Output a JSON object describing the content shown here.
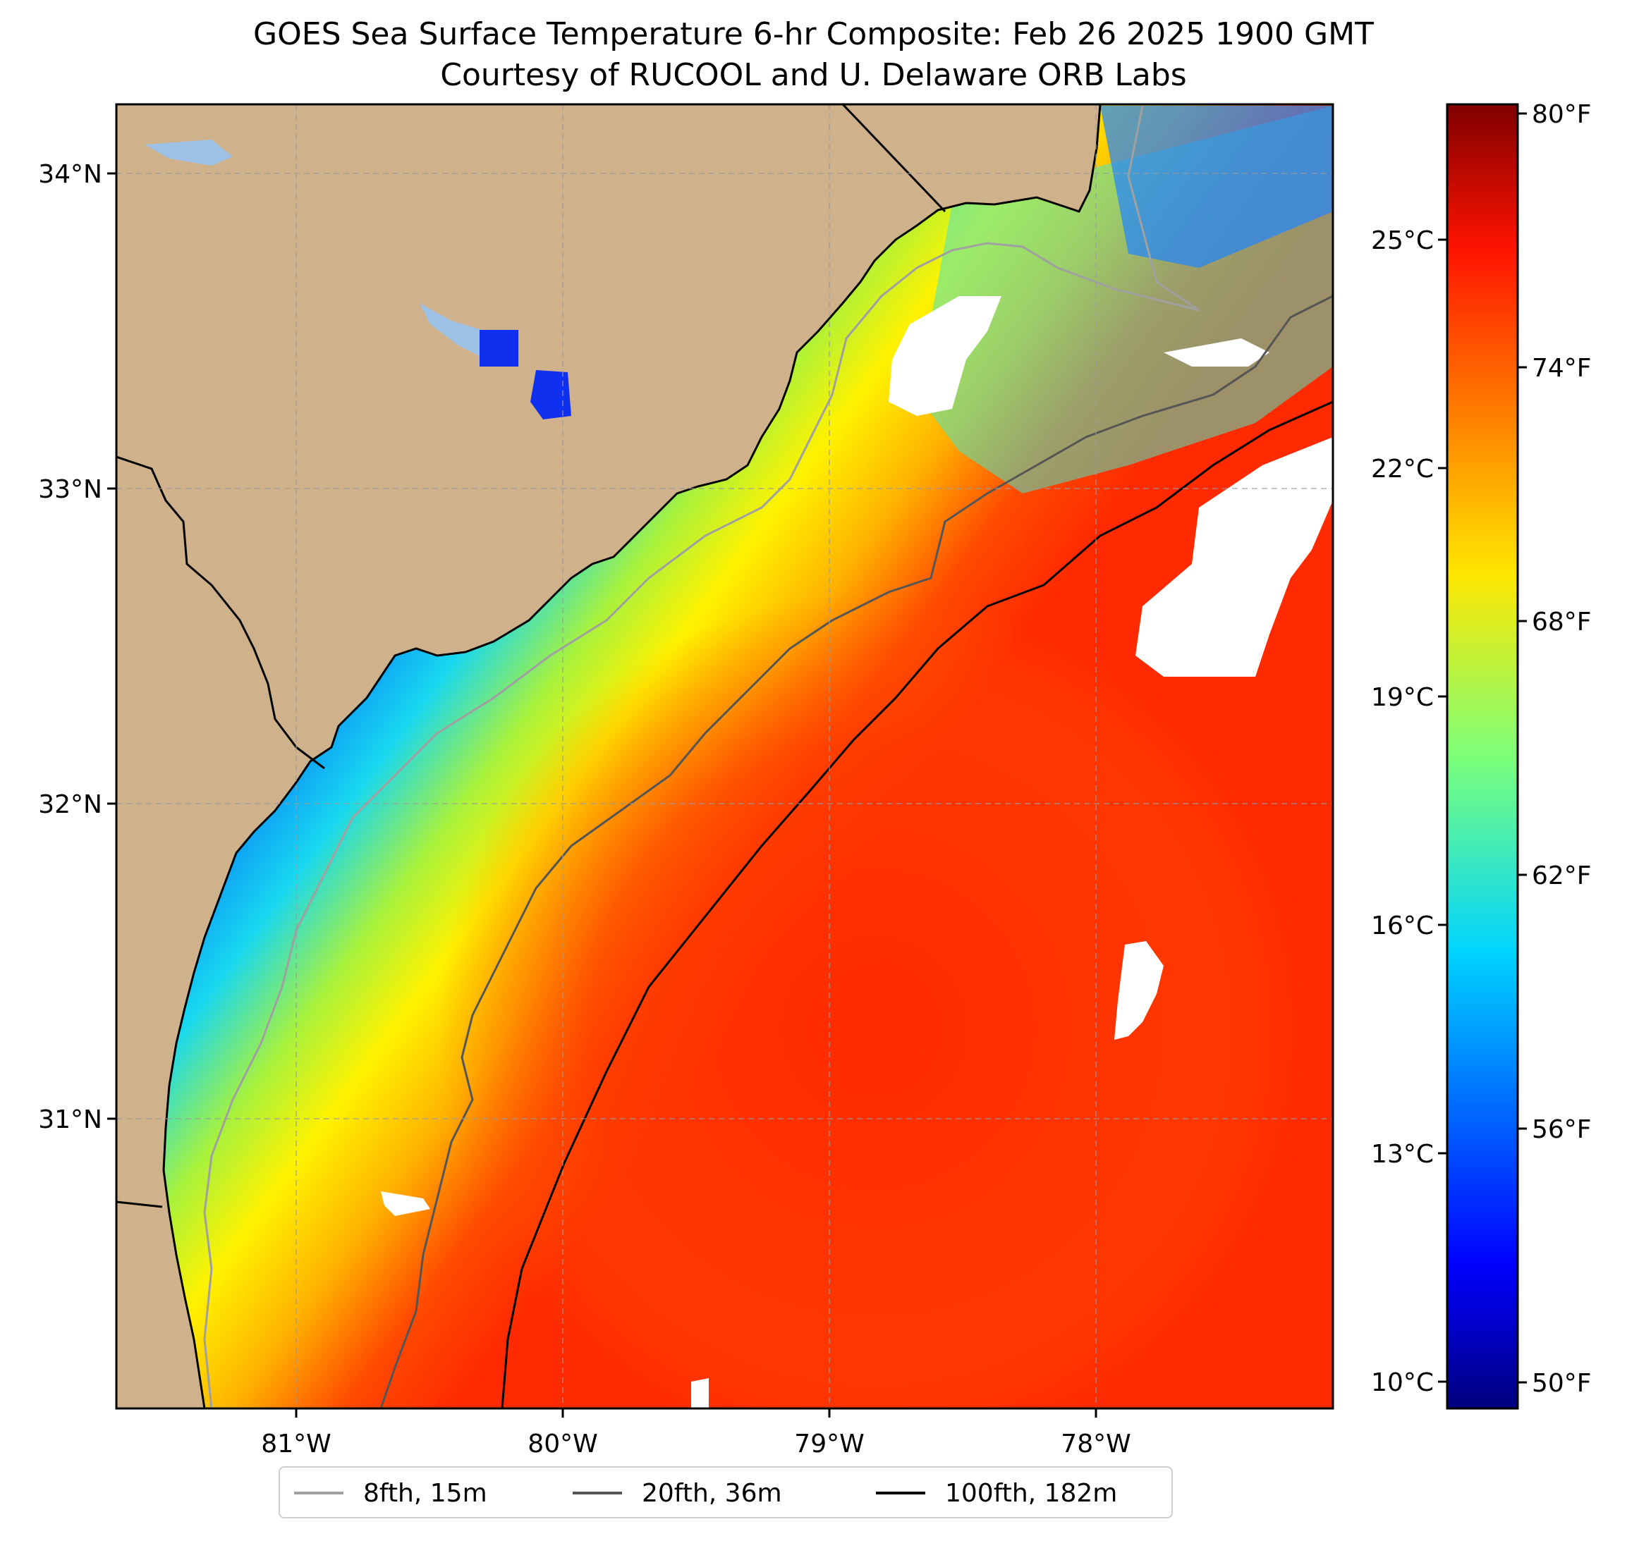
{
  "header": {
    "title": "GOES Sea Surface Temperature 6-hr Composite: Feb 26 2025 1900 GMT",
    "subtitle": "Courtesy of RUCOOL and U. Delaware ORB Labs"
  },
  "map": {
    "lon_range": [
      -81.67,
      -77.17
    ],
    "lat_range": [
      30.25,
      34.22
    ],
    "lat_ticks": [
      {
        "value": 34,
        "label": "34°N"
      },
      {
        "value": 33,
        "label": "33°N"
      },
      {
        "value": 32,
        "label": "32°N"
      },
      {
        "value": 31,
        "label": "31°N"
      }
    ],
    "lon_ticks": [
      {
        "value": -81,
        "label": "81°W"
      },
      {
        "value": -80,
        "label": "80°W"
      },
      {
        "value": -79,
        "label": "79°W"
      },
      {
        "value": -78,
        "label": "78°W"
      }
    ],
    "land_color": "#cfb28b",
    "gridlines": "dashed"
  },
  "colorbar": {
    "colormap": "jet",
    "celsius_ticks": [
      "25°C",
      "22°C",
      "19°C",
      "16°C",
      "13°C",
      "10°C"
    ],
    "fahrenheit_ticks": [
      "80°F",
      "74°F",
      "68°F",
      "62°F",
      "56°F",
      "50°F"
    ]
  },
  "legend": {
    "items": [
      {
        "label": "8fth, 15m",
        "color": "#a0a0a0"
      },
      {
        "label": "20fth, 36m",
        "color": "#555555"
      },
      {
        "label": "100fth, 182m",
        "color": "#000000"
      }
    ]
  }
}
